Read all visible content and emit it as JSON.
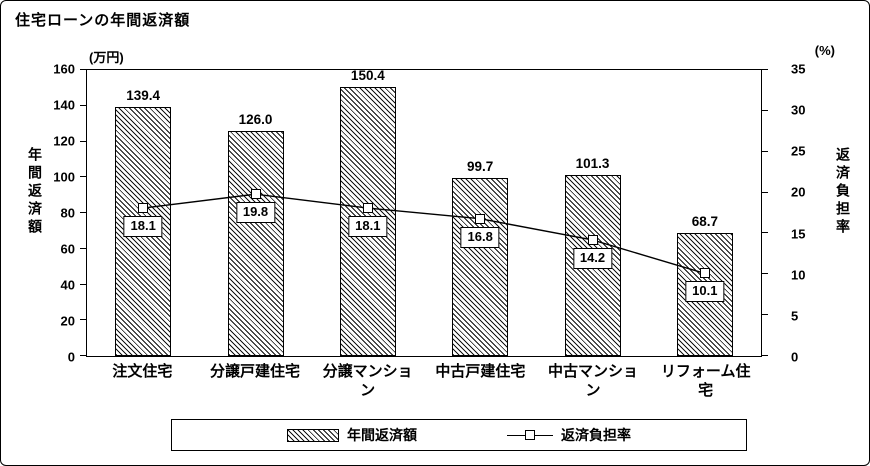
{
  "chart": {
    "title": "住宅ローンの年間返済額",
    "left_axis": {
      "unit": "(万円)",
      "title": "年間返済額",
      "min": 0,
      "max": 160,
      "step": 20
    },
    "right_axis": {
      "unit": "(%)",
      "title": "返済負担率",
      "min": 0,
      "max": 35,
      "step": 5
    },
    "legend": [
      {
        "label": "年間返済額",
        "type": "bar"
      },
      {
        "label": "返済負担率",
        "type": "line"
      }
    ]
  },
  "chart_data": {
    "type": "bar+line",
    "title": "住宅ローンの年間返済額",
    "categories": [
      "注文住宅",
      "分譲戸建住宅",
      "分譲マンション",
      "中古戸建住宅",
      "中古マンション",
      "リフォーム住宅"
    ],
    "series": [
      {
        "name": "年間返済額",
        "type": "bar",
        "axis": "left",
        "unit": "万円",
        "values": [
          139.4,
          126.0,
          150.4,
          99.7,
          101.3,
          68.7
        ]
      },
      {
        "name": "返済負担率",
        "type": "line",
        "axis": "right",
        "unit": "%",
        "values": [
          18.1,
          19.8,
          18.1,
          16.8,
          14.2,
          10.1
        ]
      }
    ],
    "left_ylim": [
      0,
      160
    ],
    "right_ylim": [
      0,
      35
    ],
    "grid": false,
    "legend_position": "bottom"
  }
}
